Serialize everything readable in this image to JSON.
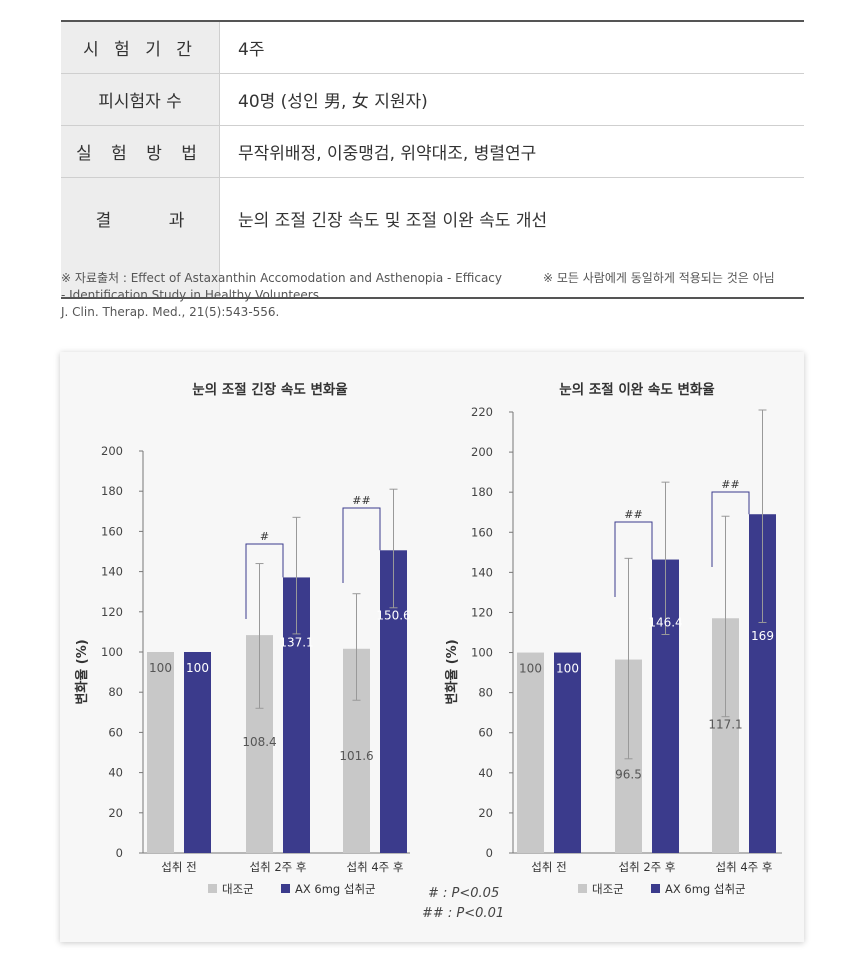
{
  "info_table": {
    "rows": [
      {
        "label": "시 험 기 간",
        "value": "4주"
      },
      {
        "label": "피시험자 수",
        "value": "40명 (성인 男, 女 지원자)"
      },
      {
        "label": "실 험 방 법",
        "value": "무작위배정, 이중맹검, 위약대조, 병렬연구"
      },
      {
        "label": "결 과",
        "value": "눈의 조절 긴장 속도 및 조절 이완 속도 개선"
      }
    ]
  },
  "footnotes": {
    "source_line1": "※ 자료출처 : Effect of Astaxanthin Accomodation and Asthenopia - Efficacy",
    "source_line2": "- Identification Study in Healthy Volunteers.",
    "source_line3": "J. Clin. Therap. Med., 21(5):543-556.",
    "disclaimer": "※ 모든 사람에게 동일하게 적용되는 것은 아님"
  },
  "significance": {
    "p05": "# : P<0.05",
    "p01": "## : P<0.01"
  },
  "colors": {
    "control": "#c8c8c8",
    "treatment": "#3b3b8c",
    "bracket": "#3b3b8c",
    "error_bar": "#999999"
  },
  "chart_data": [
    {
      "type": "bar",
      "title": "눈의 조절 긴장 속도 변화율",
      "ylabel": "변화율 (%)",
      "ylim": [
        0,
        200
      ],
      "yticks": [
        0,
        20,
        40,
        60,
        80,
        100,
        120,
        140,
        160,
        180,
        200
      ],
      "categories": [
        "섭취 전",
        "섭취 2주 후",
        "섭취 4주 후"
      ],
      "series": [
        {
          "name": "대조군",
          "values": [
            100,
            108.4,
            101.6
          ],
          "labels": [
            "100",
            "108.4",
            "101.6"
          ],
          "err_low": [
            null,
            72,
            76
          ],
          "err_high": [
            null,
            144,
            129
          ]
        },
        {
          "name": "AX 6mg 섭취군",
          "values": [
            100,
            137.1,
            150.6
          ],
          "labels": [
            "100",
            "137.1",
            "150.6"
          ],
          "err_low": [
            null,
            109,
            122
          ],
          "err_high": [
            null,
            167,
            181
          ]
        }
      ],
      "significance": [
        null,
        "#",
        "##"
      ],
      "legend": "bottom"
    },
    {
      "type": "bar",
      "title": "눈의 조절 이완 속도 변화율",
      "ylabel": "변화율 (%)",
      "ylim": [
        0,
        220
      ],
      "yticks": [
        0,
        20,
        40,
        60,
        80,
        100,
        120,
        140,
        160,
        180,
        200,
        220
      ],
      "categories": [
        "섭취 전",
        "섭취 2주 후",
        "섭취 4주 후"
      ],
      "series": [
        {
          "name": "대조군",
          "values": [
            100,
            96.5,
            117.1
          ],
          "labels": [
            "100",
            "96.5",
            "117.1"
          ],
          "err_low": [
            null,
            47,
            68
          ],
          "err_high": [
            null,
            147,
            168
          ]
        },
        {
          "name": "AX 6mg 섭취군",
          "values": [
            100,
            146.4,
            169
          ],
          "labels": [
            "100",
            "146.4",
            "169"
          ],
          "err_low": [
            null,
            109,
            115
          ],
          "err_high": [
            null,
            185,
            221
          ]
        }
      ],
      "significance": [
        null,
        "##",
        "##"
      ],
      "legend": "bottom"
    }
  ]
}
